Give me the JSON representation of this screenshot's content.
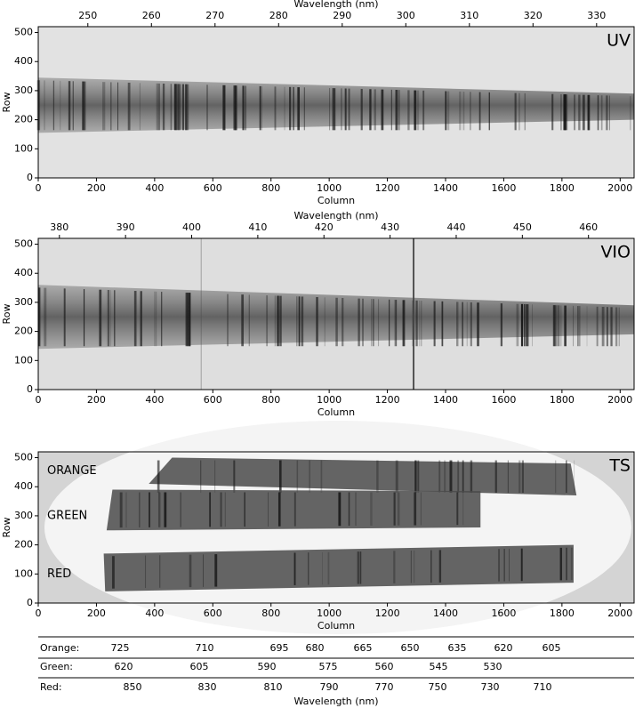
{
  "chart_data": [
    {
      "type": "image",
      "label": "UV",
      "xlabel": "Column",
      "ylabel": "Row",
      "xlim": [
        0,
        2048
      ],
      "ylim": [
        0,
        520
      ],
      "xticks": [
        0,
        200,
        400,
        600,
        800,
        1000,
        1200,
        1400,
        1600,
        1800,
        2000
      ],
      "yticks": [
        0,
        100,
        200,
        300,
        400,
        500
      ],
      "x2label": "Wavelength (nm)",
      "x2lim": [
        242.2,
        335.9
      ],
      "x2ticks": [
        250,
        260,
        270,
        280,
        290,
        300,
        310,
        320,
        330
      ]
    },
    {
      "type": "image",
      "label": "VIO",
      "xlabel": "Column",
      "ylabel": "Row",
      "xlim": [
        0,
        2048
      ],
      "ylim": [
        0,
        520
      ],
      "xticks": [
        0,
        200,
        400,
        600,
        800,
        1000,
        1200,
        1400,
        1600,
        1800,
        2000
      ],
      "yticks": [
        0,
        100,
        200,
        300,
        400,
        500
      ],
      "x2label": "Wavelength (nm)",
      "x2lim": [
        376.8,
        466.9
      ],
      "x2ticks": [
        380,
        390,
        400,
        410,
        420,
        430,
        440,
        450,
        460
      ]
    },
    {
      "type": "image",
      "label": "TS",
      "xlabel": "Column",
      "ylabel": "Row",
      "xlim": [
        0,
        2048
      ],
      "ylim": [
        0,
        520
      ],
      "xticks": [
        0,
        200,
        400,
        600,
        800,
        1000,
        1200,
        1400,
        1600,
        1800,
        2000
      ],
      "yticks": [
        0,
        100,
        200,
        300,
        400,
        500
      ],
      "annotations": [
        "ORANGE",
        "GREEN",
        "RED"
      ]
    }
  ],
  "wavelength_table": {
    "xlabel": "Wavelength (nm)",
    "rows": [
      {
        "label": "Orange:",
        "values": [
          725,
          710,
          695,
          680,
          665,
          650,
          635,
          620,
          605
        ]
      },
      {
        "label": "Green:",
        "values": [
          620,
          605,
          590,
          575,
          560,
          545,
          530
        ]
      },
      {
        "label": "Red:",
        "values": [
          850,
          830,
          810,
          790,
          770,
          750,
          730,
          710
        ]
      }
    ]
  }
}
